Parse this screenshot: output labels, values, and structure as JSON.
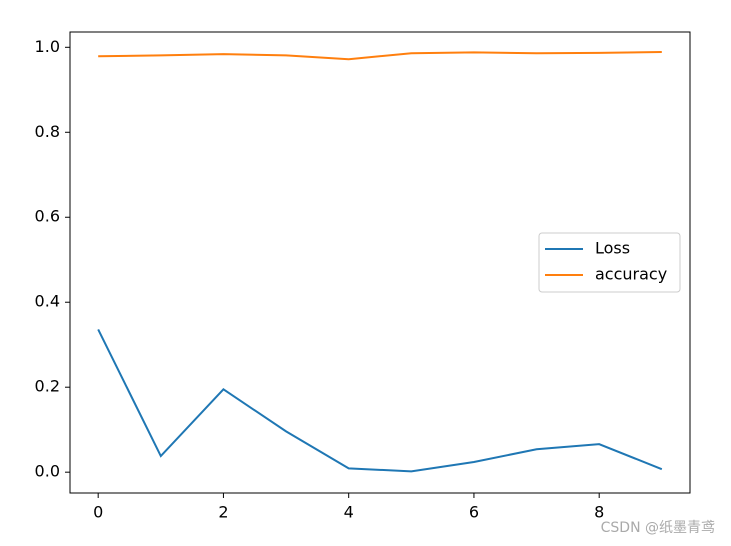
{
  "chart_data": {
    "type": "line",
    "x": [
      0,
      1,
      2,
      3,
      4,
      5,
      6,
      7,
      8,
      9
    ],
    "series": [
      {
        "name": "Loss",
        "color": "#1f77b4",
        "values": [
          0.336,
          0.038,
          0.195,
          0.096,
          0.009,
          0.002,
          0.024,
          0.054,
          0.066,
          0.007
        ]
      },
      {
        "name": "accuracy",
        "color": "#ff7f0e",
        "values": [
          0.979,
          0.981,
          0.984,
          0.981,
          0.972,
          0.986,
          0.988,
          0.986,
          0.987,
          0.989
        ]
      }
    ],
    "xlim": [
      -0.45,
      9.45
    ],
    "xticks": [
      0,
      2,
      4,
      6,
      8
    ],
    "ylim": [
      -0.049,
      1.036
    ],
    "yticks": [
      {
        "value": 0,
        "label": "0.0"
      },
      {
        "value": 0.2,
        "label": "0.2"
      },
      {
        "value": 0.4,
        "label": "0.4"
      },
      {
        "value": 0.6,
        "label": "0.6"
      },
      {
        "value": 0.8,
        "label": "0.8"
      },
      {
        "value": 1,
        "label": "1.0"
      }
    ],
    "legend": "center right",
    "watermark": "CSDN @纸墨青鸢"
  }
}
